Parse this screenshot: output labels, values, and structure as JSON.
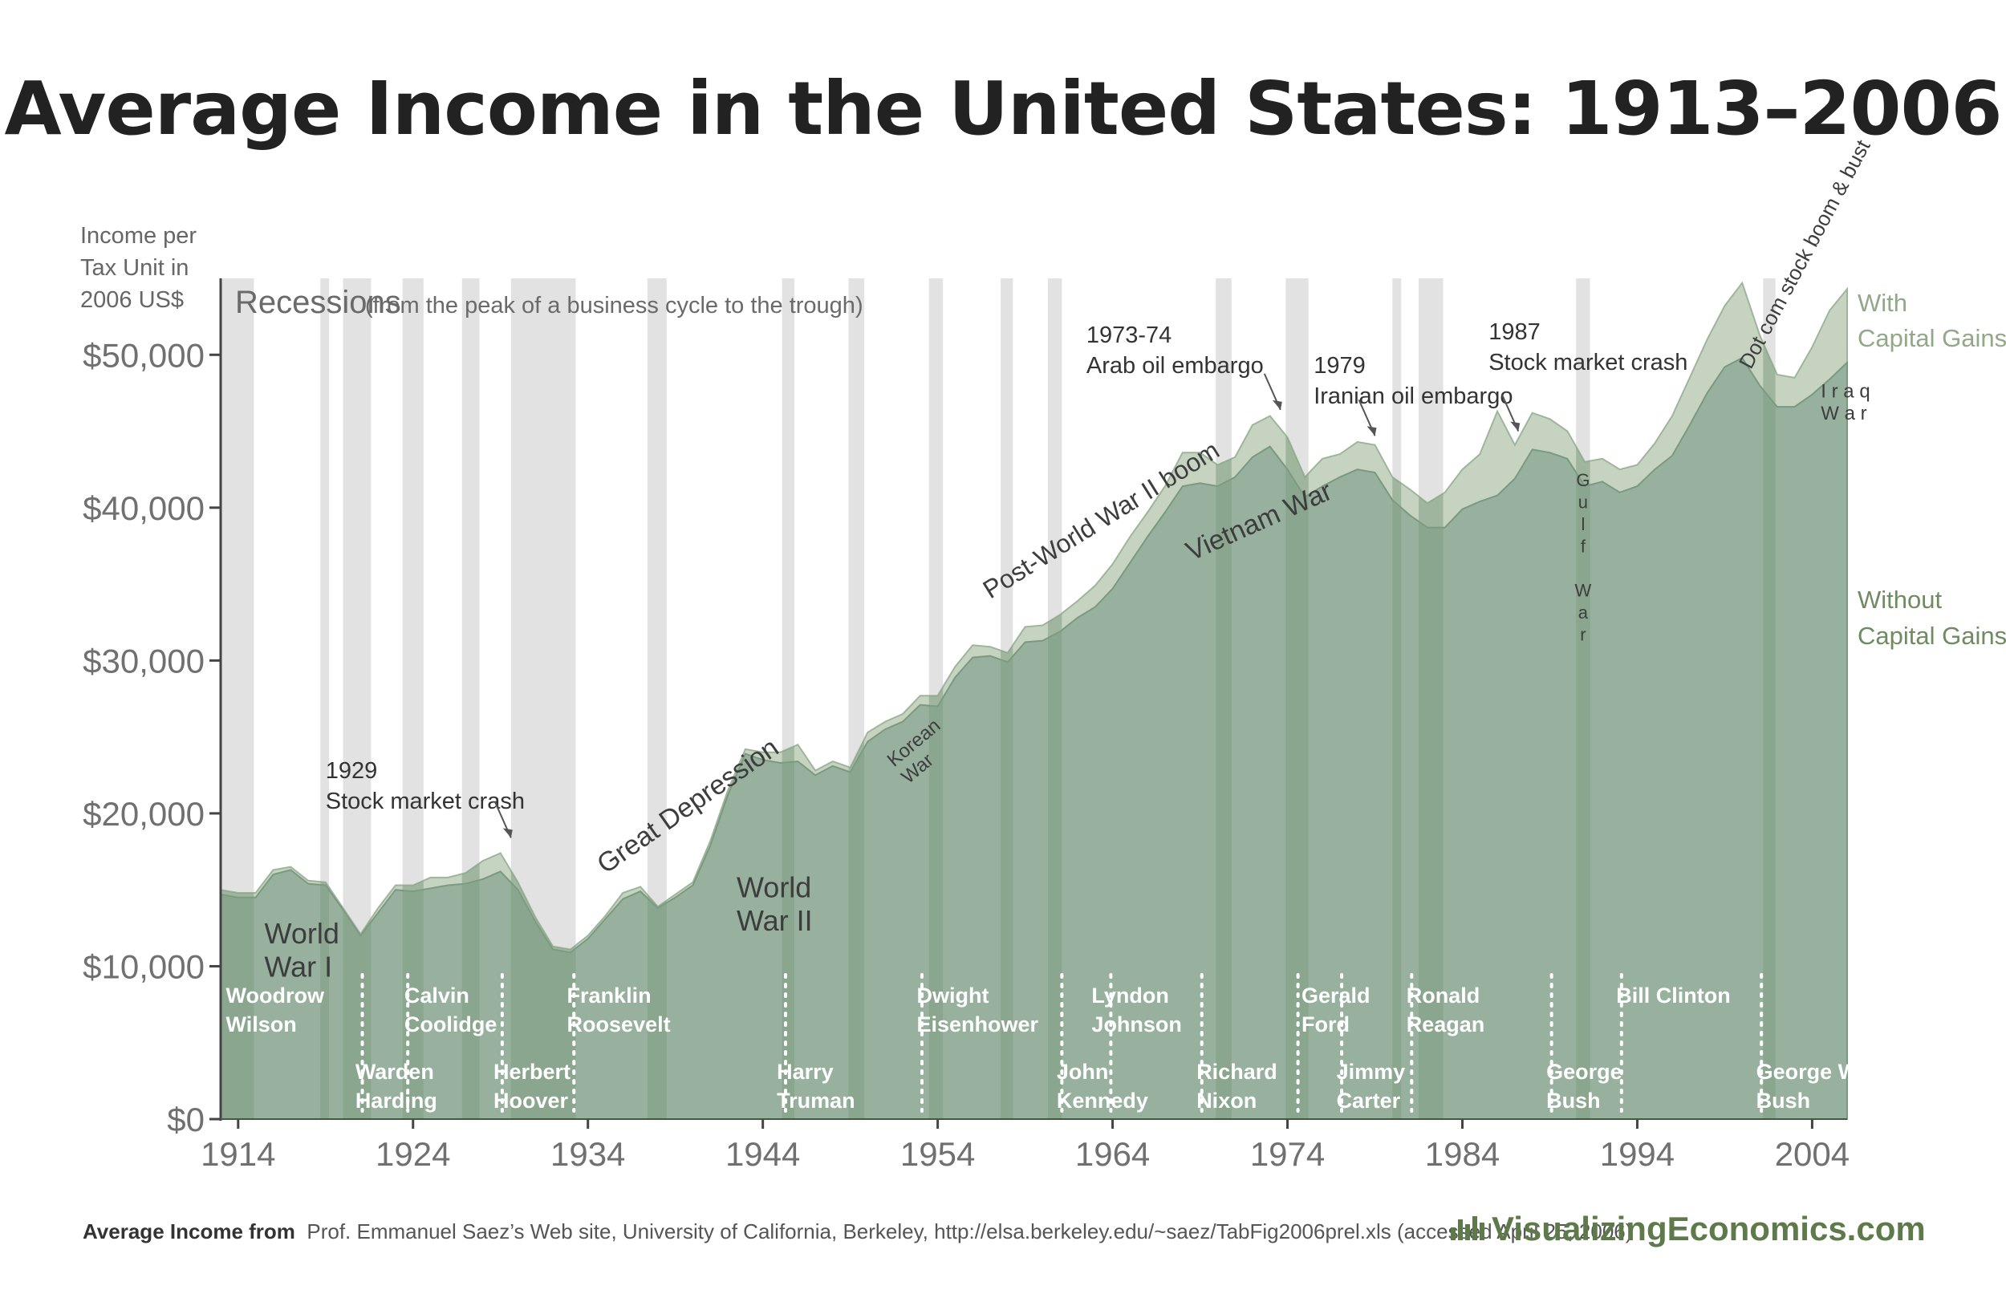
{
  "title": "Average Income in the United States: 1913–2006",
  "source_label": "Average Income from",
  "source_text": "Prof. Emmanuel Saez’s Web site, University of California, Berkeley, http://elsa.berkeley.edu/~saez/TabFig2006prel.xls (accessed April  25, 2006)",
  "brand": "VisualizingEconomics.com",
  "colors": {
    "with_cg": "#c6d3c1",
    "without_cg": "#97b19e",
    "recession": "#e1e2e1",
    "recession_overlay": "#7f9d82",
    "accent": "#5f7a4a"
  },
  "chart_data": {
    "type": "area",
    "title": "Average Income in the United States: 1913–2006",
    "ylabel": [
      "Income per",
      "Tax Unit in",
      "2006 US$"
    ],
    "ylim": [
      0,
      55000
    ],
    "xlim": [
      1913,
      2006
    ],
    "yticks": [
      0,
      10000,
      20000,
      30000,
      40000,
      50000
    ],
    "ytick_labels": [
      "$0",
      "$10,000",
      "$20,000",
      "$30,000",
      "$40,000",
      "$50,000"
    ],
    "xticks": [
      1914,
      1924,
      1934,
      1944,
      1954,
      1964,
      1974,
      1984,
      1994,
      2004
    ],
    "grid": false,
    "legend": [
      "With Capital Gains",
      "Without Capital Gains"
    ],
    "series": [
      {
        "name": "With Capital Gains",
        "points": [
          [
            1913,
            15000
          ],
          [
            1914,
            14800
          ],
          [
            1915,
            14800
          ],
          [
            1916,
            16300
          ],
          [
            1917,
            16500
          ],
          [
            1918,
            15600
          ],
          [
            1919,
            15500
          ],
          [
            1920,
            13800
          ],
          [
            1921,
            12100
          ],
          [
            1922,
            13800
          ],
          [
            1923,
            15300
          ],
          [
            1924,
            15300
          ],
          [
            1925,
            15800
          ],
          [
            1926,
            15800
          ],
          [
            1927,
            16100
          ],
          [
            1928,
            16900
          ],
          [
            1929,
            17400
          ],
          [
            1930,
            15500
          ],
          [
            1931,
            13200
          ],
          [
            1932,
            11300
          ],
          [
            1933,
            11100
          ],
          [
            1934,
            12000
          ],
          [
            1935,
            13300
          ],
          [
            1936,
            14800
          ],
          [
            1937,
            15200
          ],
          [
            1938,
            13900
          ],
          [
            1939,
            14700
          ],
          [
            1940,
            15500
          ],
          [
            1941,
            18200
          ],
          [
            1942,
            21500
          ],
          [
            1943,
            24200
          ],
          [
            1944,
            24000
          ],
          [
            1945,
            24000
          ],
          [
            1946,
            24500
          ],
          [
            1947,
            22800
          ],
          [
            1948,
            23400
          ],
          [
            1949,
            23000
          ],
          [
            1950,
            25300
          ],
          [
            1951,
            26000
          ],
          [
            1952,
            26500
          ],
          [
            1953,
            27700
          ],
          [
            1954,
            27700
          ],
          [
            1955,
            29600
          ],
          [
            1956,
            31000
          ],
          [
            1957,
            30900
          ],
          [
            1958,
            30500
          ],
          [
            1959,
            32200
          ],
          [
            1960,
            32300
          ],
          [
            1961,
            33000
          ],
          [
            1962,
            33900
          ],
          [
            1963,
            34900
          ],
          [
            1964,
            36300
          ],
          [
            1965,
            38100
          ],
          [
            1966,
            39700
          ],
          [
            1967,
            41400
          ],
          [
            1968,
            43600
          ],
          [
            1969,
            43600
          ],
          [
            1970,
            42800
          ],
          [
            1971,
            43300
          ],
          [
            1972,
            45400
          ],
          [
            1973,
            46000
          ],
          [
            1974,
            44600
          ],
          [
            1975,
            42000
          ],
          [
            1976,
            43200
          ],
          [
            1977,
            43500
          ],
          [
            1978,
            44300
          ],
          [
            1979,
            44100
          ],
          [
            1980,
            42000
          ],
          [
            1981,
            41200
          ],
          [
            1982,
            40300
          ],
          [
            1983,
            41000
          ],
          [
            1984,
            42500
          ],
          [
            1985,
            43500
          ],
          [
            1986,
            46300
          ],
          [
            1987,
            44100
          ],
          [
            1988,
            46200
          ],
          [
            1989,
            45800
          ],
          [
            1990,
            45000
          ],
          [
            1991,
            43000
          ],
          [
            1992,
            43200
          ],
          [
            1993,
            42500
          ],
          [
            1994,
            42800
          ],
          [
            1995,
            44200
          ],
          [
            1996,
            46000
          ],
          [
            1997,
            48500
          ],
          [
            1998,
            51000
          ],
          [
            1999,
            53200
          ],
          [
            2000,
            54700
          ],
          [
            2001,
            51300
          ],
          [
            2002,
            48700
          ],
          [
            2003,
            48500
          ],
          [
            2004,
            50500
          ],
          [
            2005,
            52900
          ],
          [
            2006,
            54300
          ]
        ]
      },
      {
        "name": "Without Capital Gains",
        "points": [
          [
            1913,
            14700
          ],
          [
            1914,
            14500
          ],
          [
            1915,
            14500
          ],
          [
            1916,
            16000
          ],
          [
            1917,
            16300
          ],
          [
            1918,
            15400
          ],
          [
            1919,
            15300
          ],
          [
            1920,
            13700
          ],
          [
            1921,
            12000
          ],
          [
            1922,
            13500
          ],
          [
            1923,
            15000
          ],
          [
            1924,
            14900
          ],
          [
            1925,
            15100
          ],
          [
            1926,
            15300
          ],
          [
            1927,
            15400
          ],
          [
            1928,
            15700
          ],
          [
            1929,
            16200
          ],
          [
            1930,
            15000
          ],
          [
            1931,
            12900
          ],
          [
            1932,
            11100
          ],
          [
            1933,
            10900
          ],
          [
            1934,
            11800
          ],
          [
            1935,
            13100
          ],
          [
            1936,
            14400
          ],
          [
            1937,
            14900
          ],
          [
            1938,
            13800
          ],
          [
            1939,
            14500
          ],
          [
            1940,
            15300
          ],
          [
            1941,
            17900
          ],
          [
            1942,
            21200
          ],
          [
            1943,
            23900
          ],
          [
            1944,
            23500
          ],
          [
            1945,
            23300
          ],
          [
            1946,
            23400
          ],
          [
            1947,
            22500
          ],
          [
            1948,
            23100
          ],
          [
            1949,
            22700
          ],
          [
            1950,
            24700
          ],
          [
            1951,
            25500
          ],
          [
            1952,
            26000
          ],
          [
            1953,
            27100
          ],
          [
            1954,
            27000
          ],
          [
            1955,
            28900
          ],
          [
            1956,
            30200
          ],
          [
            1957,
            30300
          ],
          [
            1958,
            29900
          ],
          [
            1959,
            31200
          ],
          [
            1960,
            31300
          ],
          [
            1961,
            31900
          ],
          [
            1962,
            32800
          ],
          [
            1963,
            33500
          ],
          [
            1964,
            34700
          ],
          [
            1965,
            36400
          ],
          [
            1966,
            38100
          ],
          [
            1967,
            39700
          ],
          [
            1968,
            41400
          ],
          [
            1969,
            41600
          ],
          [
            1970,
            41400
          ],
          [
            1971,
            42000
          ],
          [
            1972,
            43300
          ],
          [
            1973,
            44000
          ],
          [
            1974,
            42500
          ],
          [
            1975,
            40700
          ],
          [
            1976,
            41400
          ],
          [
            1977,
            42000
          ],
          [
            1978,
            42500
          ],
          [
            1979,
            42300
          ],
          [
            1980,
            40500
          ],
          [
            1981,
            39500
          ],
          [
            1982,
            38700
          ],
          [
            1983,
            38700
          ],
          [
            1984,
            39900
          ],
          [
            1985,
            40400
          ],
          [
            1986,
            40800
          ],
          [
            1987,
            41900
          ],
          [
            1988,
            43800
          ],
          [
            1989,
            43600
          ],
          [
            1990,
            43200
          ],
          [
            1991,
            41400
          ],
          [
            1992,
            41700
          ],
          [
            1993,
            41000
          ],
          [
            1994,
            41400
          ],
          [
            1995,
            42500
          ],
          [
            1996,
            43400
          ],
          [
            1997,
            45400
          ],
          [
            1998,
            47500
          ],
          [
            1999,
            49200
          ],
          [
            2000,
            49800
          ],
          [
            2001,
            48000
          ],
          [
            2002,
            46600
          ],
          [
            2003,
            46600
          ],
          [
            2004,
            47400
          ],
          [
            2005,
            48400
          ],
          [
            2006,
            49500
          ]
        ]
      }
    ],
    "recessions": [
      [
        1913,
        1914.9
      ],
      [
        1918.7,
        1919.2
      ],
      [
        1920,
        1921.6
      ],
      [
        1923.4,
        1924.6
      ],
      [
        1926.8,
        1927.8
      ],
      [
        1929.6,
        1933.3
      ],
      [
        1937.4,
        1938.5
      ],
      [
        1945.1,
        1945.8
      ],
      [
        1948.9,
        1949.8
      ],
      [
        1953.5,
        1954.3
      ],
      [
        1957.6,
        1958.3
      ],
      [
        1960.3,
        1961.1
      ],
      [
        1969.9,
        1970.8
      ],
      [
        1973.9,
        1975.2
      ],
      [
        1980,
        1980.5
      ],
      [
        1981.5,
        1982.9
      ],
      [
        1990.5,
        1991.3
      ],
      [
        2001.2,
        2001.9
      ]
    ],
    "recessions_label": "Recessions",
    "recessions_note": "(from the peak of a business cycle to the trough)",
    "event_labels": [
      {
        "text": [
          "World",
          "War I"
        ],
        "x": 1915.5,
        "y": 11500,
        "rotate": 0,
        "size": 36
      },
      {
        "text": [
          "World",
          "War II"
        ],
        "x": 1942.5,
        "y": 14500,
        "rotate": 0,
        "size": 36
      },
      {
        "text": [
          "Great Depression"
        ],
        "x": 1935,
        "y": 16000,
        "rotate": -35,
        "size": 34
      },
      {
        "text": [
          "Post-World War II boom"
        ],
        "x": 1957,
        "y": 34000,
        "rotate": -32,
        "size": 32
      },
      {
        "text": [
          "Korean",
          "War"
        ],
        "x": 1951.5,
        "y": 23000,
        "rotate": -40,
        "size": 24
      },
      {
        "text": [
          "Vietnam War"
        ],
        "x": 1968.5,
        "y": 36500,
        "rotate": -24,
        "size": 34
      },
      {
        "text": [
          "G",
          "u",
          "l",
          "f",
          "",
          "W",
          "a",
          "r"
        ],
        "x": 1990.9,
        "y": 41400,
        "rotate": 0,
        "size": 22,
        "vertical": true
      },
      {
        "text": [
          "I r a q",
          "W a r"
        ],
        "x": 2004.5,
        "y": 47200,
        "rotate": 0,
        "size": 24
      },
      {
        "text": [
          "Dot com stock boom & bust"
        ],
        "x": 2000.5,
        "y": 49000,
        "rotate": -62,
        "size": 26
      }
    ],
    "callouts": [
      {
        "text": [
          "1929",
          "Stock market crash"
        ],
        "label_x": 1919,
        "label_y": 22300,
        "arrow_to": [
          1929.6,
          18400
        ]
      },
      {
        "text": [
          "1973-74",
          "Arab oil embargo"
        ],
        "label_x": 1962.5,
        "label_y": 50800,
        "arrow_to": [
          1973.6,
          46400
        ]
      },
      {
        "text": [
          "1979",
          "Iranian oil embargo"
        ],
        "label_x": 1975.5,
        "label_y": 48800,
        "arrow_to": [
          1979,
          44700
        ]
      },
      {
        "text": [
          "1987",
          "Stock market crash"
        ],
        "label_x": 1985.5,
        "label_y": 51000,
        "arrow_to": [
          1987.2,
          45000
        ]
      }
    ],
    "presidents": [
      {
        "name": [
          "Woodrow",
          "Wilson"
        ],
        "x": 1913.3,
        "row": 1
      },
      {
        "name": [
          "Warden",
          "Harding"
        ],
        "x": 1920.7,
        "row": 2
      },
      {
        "name": [
          "Calvin",
          "Coolidge"
        ],
        "x": 1923.5,
        "row": 1
      },
      {
        "name": [
          "Herbert",
          "Hoover"
        ],
        "x": 1928.6,
        "row": 2
      },
      {
        "name": [
          "Franklin",
          "Roosevelt"
        ],
        "x": 1932.8,
        "row": 1
      },
      {
        "name": [
          "Harry",
          "Truman"
        ],
        "x": 1944.8,
        "row": 2
      },
      {
        "name": [
          "Dwight",
          "Eisenhower"
        ],
        "x": 1952.8,
        "row": 1
      },
      {
        "name": [
          "John",
          "Kennedy"
        ],
        "x": 1960.8,
        "row": 2
      },
      {
        "name": [
          "Lyndon",
          "Johnson"
        ],
        "x": 1962.8,
        "row": 1
      },
      {
        "name": [
          "Richard",
          "Nixon"
        ],
        "x": 1968.8,
        "row": 2
      },
      {
        "name": [
          "Gerald",
          "Ford"
        ],
        "x": 1974.8,
        "row": 1
      },
      {
        "name": [
          "Jimmy",
          "Carter"
        ],
        "x": 1976.8,
        "row": 2
      },
      {
        "name": [
          "Ronald",
          "Reagan"
        ],
        "x": 1980.8,
        "row": 1
      },
      {
        "name": [
          "George",
          "Bush"
        ],
        "x": 1988.8,
        "row": 2
      },
      {
        "name": [
          "Bill Clinton"
        ],
        "x": 1992.8,
        "row": 1
      },
      {
        "name": [
          "George W.",
          "Bush"
        ],
        "x": 2000.8,
        "row": 2
      }
    ],
    "president_dividers": [
      1921.1,
      1923.7,
      1929.1,
      1933.2,
      1945.3,
      1953.1,
      1961.1,
      1963.9,
      1969.1,
      1974.6,
      1977.1,
      1981.1,
      1989.1,
      1993.1,
      2001.1
    ]
  }
}
